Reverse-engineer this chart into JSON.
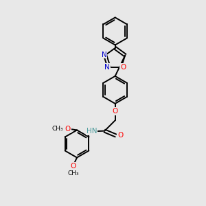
{
  "background_color": "#e8e8e8",
  "atom_colors": {
    "N": "#0000cd",
    "O": "#ff0000",
    "C": "#000000",
    "H": "#4a9a9a"
  },
  "bond_color": "#000000",
  "bond_width": 1.4,
  "figsize": [
    3.0,
    3.0
  ],
  "dpi": 100,
  "xlim": [
    0,
    10
  ],
  "ylim": [
    0,
    10
  ]
}
